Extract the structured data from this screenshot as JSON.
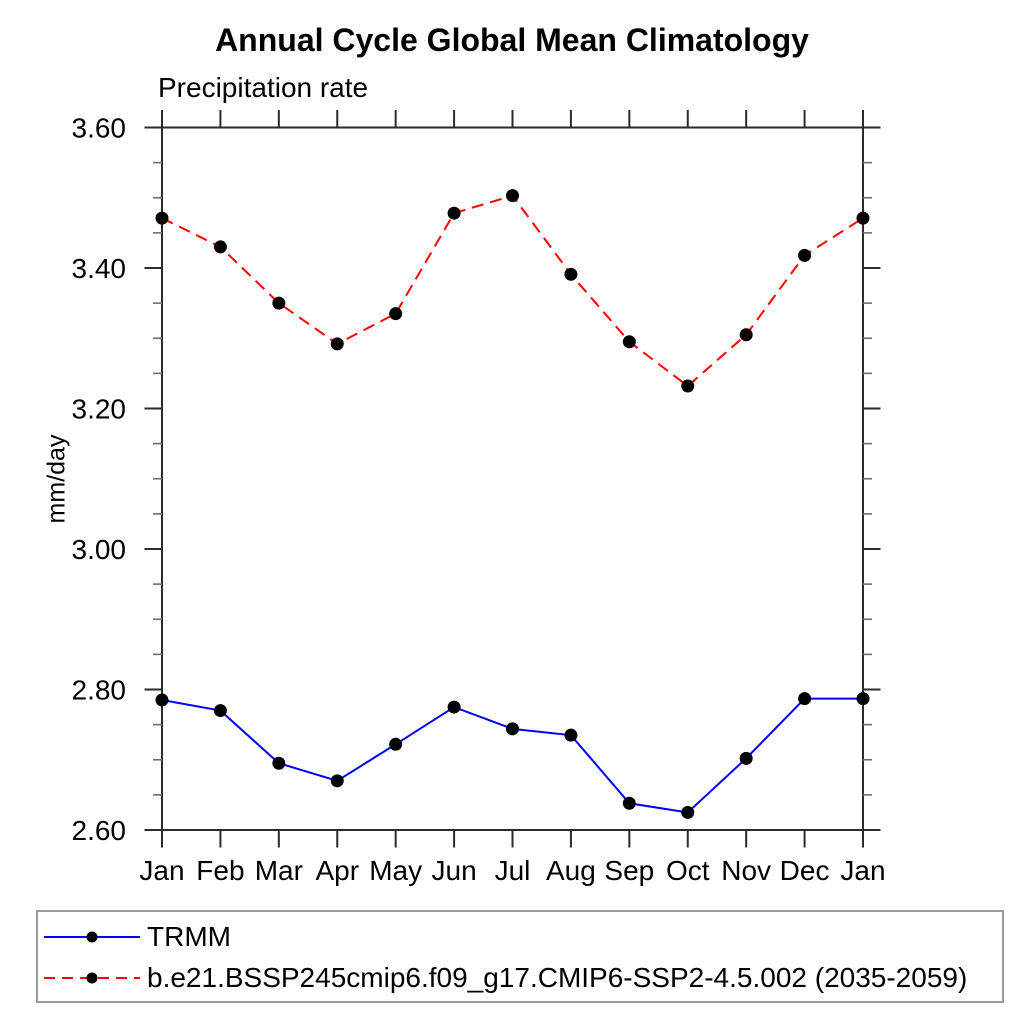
{
  "page": {
    "background": "#ffffff"
  },
  "chart_data": {
    "type": "line",
    "title": "Annual Cycle Global Mean Climatology",
    "subtitle": "Precipitation rate",
    "ylabel": "mm/day",
    "xlabel": "",
    "categories": [
      "Jan",
      "Feb",
      "Mar",
      "Apr",
      "May",
      "Jun",
      "Jul",
      "Aug",
      "Sep",
      "Oct",
      "Nov",
      "Dec",
      "Jan"
    ],
    "ylim": [
      2.6,
      3.6
    ],
    "ytick_interval": 0.2,
    "ytick_minor_interval": 0.05,
    "ytick_labels": [
      "2.60",
      "2.80",
      "3.00",
      "3.20",
      "3.40",
      "3.60"
    ],
    "grid": false,
    "legend_position": "bottom-left-box",
    "frame_color": "#2b2b2b",
    "minor_tick_color": "#6e6e6e",
    "marker_color": "#000000",
    "series": [
      {
        "name": "TRMM",
        "color": "#0000ff",
        "line_style": "solid",
        "marker": "circle",
        "values": [
          2.785,
          2.77,
          2.695,
          2.67,
          2.722,
          2.775,
          2.744,
          2.735,
          2.638,
          2.625,
          2.702,
          2.787,
          2.787
        ]
      },
      {
        "name": "b.e21.BSSP245cmip6.f09_g17.CMIP6-SSP2-4.5.002 (2035-2059)",
        "color": "#ff0000",
        "line_style": "dashed",
        "marker": "circle",
        "values": [
          3.471,
          3.43,
          3.35,
          3.292,
          3.335,
          3.478,
          3.503,
          3.391,
          3.295,
          3.232,
          3.305,
          3.418,
          3.471
        ]
      }
    ]
  }
}
